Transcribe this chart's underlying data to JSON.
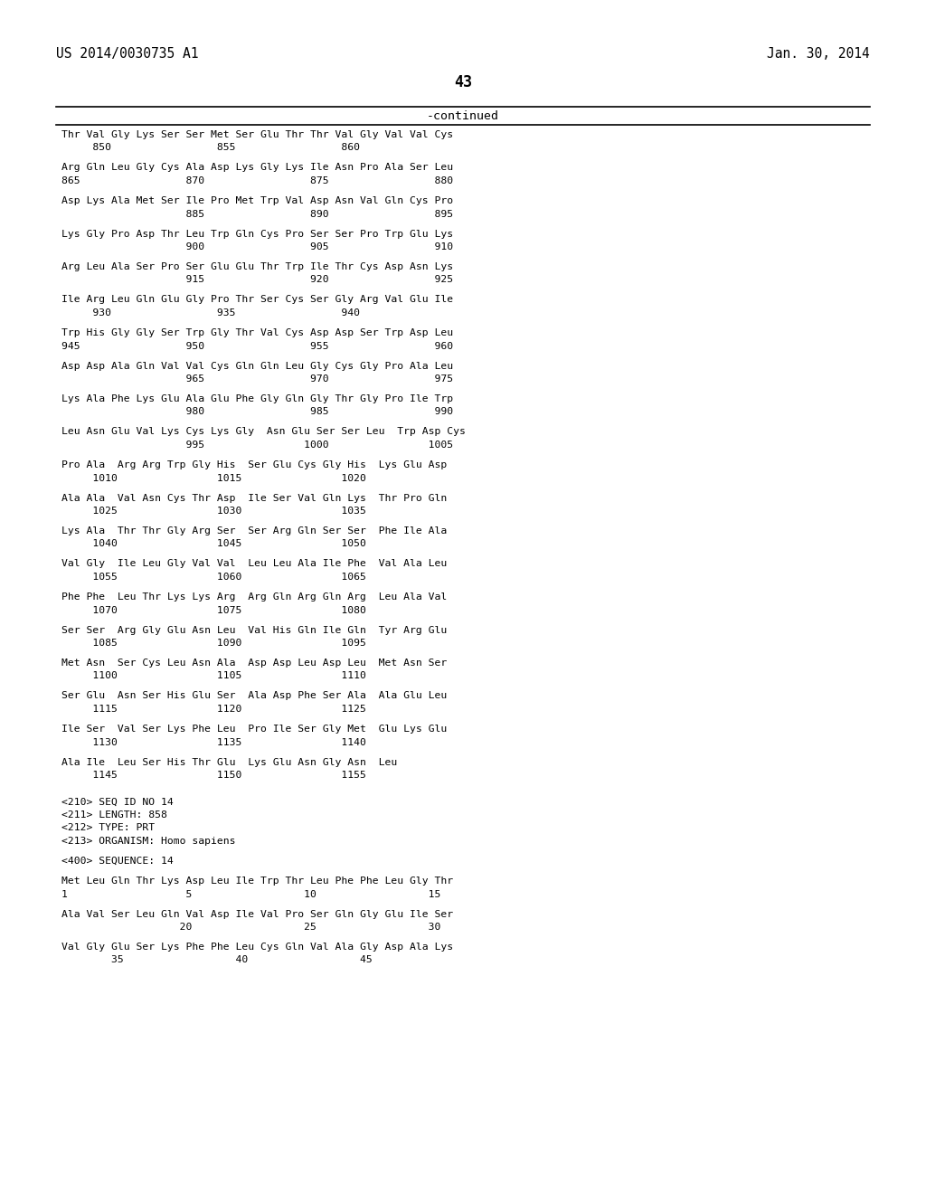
{
  "background_color": "#ffffff",
  "header_left": "US 2014/0030735 A1",
  "header_right": "Jan. 30, 2014",
  "page_number": "43",
  "continued_label": "-continued",
  "content_lines": [
    {
      "type": "seq",
      "text": "Thr Val Gly Lys Ser Ser Met Ser Glu Thr Thr Val Gly Val Val Cys"
    },
    {
      "type": "num",
      "text": "     850                 855                 860"
    },
    {
      "type": "blank"
    },
    {
      "type": "seq",
      "text": "Arg Gln Leu Gly Cys Ala Asp Lys Gly Lys Ile Asn Pro Ala Ser Leu"
    },
    {
      "type": "num",
      "text": "865                 870                 875                 880"
    },
    {
      "type": "blank"
    },
    {
      "type": "seq",
      "text": "Asp Lys Ala Met Ser Ile Pro Met Trp Val Asp Asn Val Gln Cys Pro"
    },
    {
      "type": "num",
      "text": "                    885                 890                 895"
    },
    {
      "type": "blank"
    },
    {
      "type": "seq",
      "text": "Lys Gly Pro Asp Thr Leu Trp Gln Cys Pro Ser Ser Pro Trp Glu Lys"
    },
    {
      "type": "num",
      "text": "                    900                 905                 910"
    },
    {
      "type": "blank"
    },
    {
      "type": "seq",
      "text": "Arg Leu Ala Ser Pro Ser Glu Glu Thr Trp Ile Thr Cys Asp Asn Lys"
    },
    {
      "type": "num",
      "text": "                    915                 920                 925"
    },
    {
      "type": "blank"
    },
    {
      "type": "seq",
      "text": "Ile Arg Leu Gln Glu Gly Pro Thr Ser Cys Ser Gly Arg Val Glu Ile"
    },
    {
      "type": "num",
      "text": "     930                 935                 940"
    },
    {
      "type": "blank"
    },
    {
      "type": "seq",
      "text": "Trp His Gly Gly Ser Trp Gly Thr Val Cys Asp Asp Ser Trp Asp Leu"
    },
    {
      "type": "num",
      "text": "945                 950                 955                 960"
    },
    {
      "type": "blank"
    },
    {
      "type": "seq",
      "text": "Asp Asp Ala Gln Val Val Cys Gln Gln Leu Gly Cys Gly Pro Ala Leu"
    },
    {
      "type": "num",
      "text": "                    965                 970                 975"
    },
    {
      "type": "blank"
    },
    {
      "type": "seq",
      "text": "Lys Ala Phe Lys Glu Ala Glu Phe Gly Gln Gly Thr Gly Pro Ile Trp"
    },
    {
      "type": "num",
      "text": "                    980                 985                 990"
    },
    {
      "type": "blank"
    },
    {
      "type": "seq",
      "text": "Leu Asn Glu Val Lys Cys Lys Gly  Asn Glu Ser Ser Leu  Trp Asp Cys"
    },
    {
      "type": "num",
      "text": "                    995                1000                1005"
    },
    {
      "type": "blank"
    },
    {
      "type": "seq",
      "text": "Pro Ala  Arg Arg Trp Gly His  Ser Glu Cys Gly His  Lys Glu Asp"
    },
    {
      "type": "num",
      "text": "     1010                1015                1020"
    },
    {
      "type": "blank"
    },
    {
      "type": "seq",
      "text": "Ala Ala  Val Asn Cys Thr Asp  Ile Ser Val Gln Lys  Thr Pro Gln"
    },
    {
      "type": "num",
      "text": "     1025                1030                1035"
    },
    {
      "type": "blank"
    },
    {
      "type": "seq",
      "text": "Lys Ala  Thr Thr Gly Arg Ser  Ser Arg Gln Ser Ser  Phe Ile Ala"
    },
    {
      "type": "num",
      "text": "     1040                1045                1050"
    },
    {
      "type": "blank"
    },
    {
      "type": "seq",
      "text": "Val Gly  Ile Leu Gly Val Val  Leu Leu Ala Ile Phe  Val Ala Leu"
    },
    {
      "type": "num",
      "text": "     1055                1060                1065"
    },
    {
      "type": "blank"
    },
    {
      "type": "seq",
      "text": "Phe Phe  Leu Thr Lys Lys Arg  Arg Gln Arg Gln Arg  Leu Ala Val"
    },
    {
      "type": "num",
      "text": "     1070                1075                1080"
    },
    {
      "type": "blank"
    },
    {
      "type": "seq",
      "text": "Ser Ser  Arg Gly Glu Asn Leu  Val His Gln Ile Gln  Tyr Arg Glu"
    },
    {
      "type": "num",
      "text": "     1085                1090                1095"
    },
    {
      "type": "blank"
    },
    {
      "type": "seq",
      "text": "Met Asn  Ser Cys Leu Asn Ala  Asp Asp Leu Asp Leu  Met Asn Ser"
    },
    {
      "type": "num",
      "text": "     1100                1105                1110"
    },
    {
      "type": "blank"
    },
    {
      "type": "seq",
      "text": "Ser Glu  Asn Ser His Glu Ser  Ala Asp Phe Ser Ala  Ala Glu Leu"
    },
    {
      "type": "num",
      "text": "     1115                1120                1125"
    },
    {
      "type": "blank"
    },
    {
      "type": "seq",
      "text": "Ile Ser  Val Ser Lys Phe Leu  Pro Ile Ser Gly Met  Glu Lys Glu"
    },
    {
      "type": "num",
      "text": "     1130                1135                1140"
    },
    {
      "type": "blank"
    },
    {
      "type": "seq",
      "text": "Ala Ile  Leu Ser His Thr Glu  Lys Glu Asn Gly Asn  Leu"
    },
    {
      "type": "num",
      "text": "     1145                1150                1155"
    },
    {
      "type": "blank"
    },
    {
      "type": "blank"
    },
    {
      "type": "meta",
      "text": "<210> SEQ ID NO 14"
    },
    {
      "type": "meta",
      "text": "<211> LENGTH: 858"
    },
    {
      "type": "meta",
      "text": "<212> TYPE: PRT"
    },
    {
      "type": "meta",
      "text": "<213> ORGANISM: Homo sapiens"
    },
    {
      "type": "blank"
    },
    {
      "type": "meta",
      "text": "<400> SEQUENCE: 14"
    },
    {
      "type": "blank"
    },
    {
      "type": "seq",
      "text": "Met Leu Gln Thr Lys Asp Leu Ile Trp Thr Leu Phe Phe Leu Gly Thr"
    },
    {
      "type": "num",
      "text": "1                   5                  10                  15"
    },
    {
      "type": "blank"
    },
    {
      "type": "seq",
      "text": "Ala Val Ser Leu Gln Val Asp Ile Val Pro Ser Gln Gly Glu Ile Ser"
    },
    {
      "type": "num",
      "text": "                   20                  25                  30"
    },
    {
      "type": "blank"
    },
    {
      "type": "seq",
      "text": "Val Gly Glu Ser Lys Phe Phe Leu Cys Gln Val Ala Gly Asp Ala Lys"
    },
    {
      "type": "num",
      "text": "        35                  40                  45"
    }
  ]
}
